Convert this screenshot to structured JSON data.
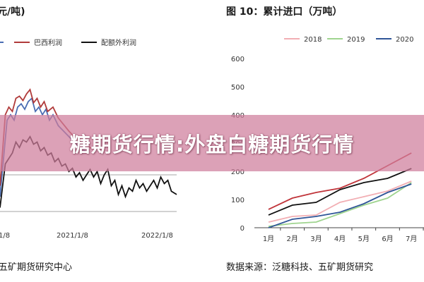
{
  "left": {
    "title": "元/吨)",
    "source": "五矿期货研究中心",
    "chart_data": {
      "type": "line",
      "x_ticks": [
        "1/8",
        "2021/1/8",
        "2022/1/8"
      ],
      "legend": [
        "巴西利润",
        "配额外利润"
      ],
      "series": [
        {
          "name": "",
          "color": "#4a6db3",
          "values": [
            [
              0.0,
              -0.2
            ],
            [
              0.04,
              0.5
            ],
            [
              0.06,
              0.55
            ],
            [
              0.08,
              0.5
            ],
            [
              0.1,
              0.62
            ],
            [
              0.12,
              0.65
            ],
            [
              0.14,
              0.6
            ],
            [
              0.16,
              0.67
            ],
            [
              0.18,
              0.7
            ],
            [
              0.2,
              0.58
            ],
            [
              0.22,
              0.62
            ],
            [
              0.24,
              0.55
            ],
            [
              0.26,
              0.6
            ],
            [
              0.28,
              0.5
            ],
            [
              0.3,
              0.55
            ],
            [
              0.33,
              0.45
            ],
            [
              0.36,
              0.4
            ],
            [
              0.39,
              0.35
            ],
            [
              0.42,
              0.3
            ],
            [
              0.45,
              0.25
            ],
            [
              0.5,
              0.2
            ]
          ]
        },
        {
          "name": "巴西利润",
          "color": "#b03a3a",
          "values": [
            [
              0.0,
              -0.1
            ],
            [
              0.03,
              0.55
            ],
            [
              0.05,
              0.62
            ],
            [
              0.07,
              0.58
            ],
            [
              0.09,
              0.7
            ],
            [
              0.11,
              0.72
            ],
            [
              0.13,
              0.68
            ],
            [
              0.15,
              0.74
            ],
            [
              0.17,
              0.78
            ],
            [
              0.19,
              0.66
            ],
            [
              0.21,
              0.7
            ],
            [
              0.23,
              0.62
            ],
            [
              0.25,
              0.67
            ],
            [
              0.27,
              0.58
            ],
            [
              0.3,
              0.62
            ],
            [
              0.33,
              0.52
            ],
            [
              0.36,
              0.46
            ],
            [
              0.39,
              0.4
            ],
            [
              0.42,
              0.35
            ],
            [
              0.46,
              0.3
            ],
            [
              0.52,
              0.24
            ]
          ]
        },
        {
          "name": "配额外利润",
          "color": "#111111",
          "values": [
            [
              0.0,
              -0.3
            ],
            [
              0.03,
              0.1
            ],
            [
              0.05,
              0.15
            ],
            [
              0.07,
              0.2
            ],
            [
              0.09,
              0.3
            ],
            [
              0.11,
              0.25
            ],
            [
              0.13,
              0.32
            ],
            [
              0.15,
              0.3
            ],
            [
              0.17,
              0.35
            ],
            [
              0.19,
              0.28
            ],
            [
              0.21,
              0.3
            ],
            [
              0.23,
              0.22
            ],
            [
              0.25,
              0.25
            ],
            [
              0.27,
              0.18
            ],
            [
              0.29,
              0.2
            ],
            [
              0.31,
              0.12
            ],
            [
              0.33,
              0.15
            ],
            [
              0.35,
              0.08
            ],
            [
              0.37,
              0.1
            ],
            [
              0.39,
              0.03
            ],
            [
              0.41,
              0.06
            ],
            [
              0.43,
              -0.02
            ],
            [
              0.45,
              0.02
            ],
            [
              0.47,
              -0.05
            ],
            [
              0.49,
              0.0
            ],
            [
              0.51,
              0.05
            ],
            [
              0.53,
              -0.02
            ],
            [
              0.55,
              0.03
            ],
            [
              0.57,
              -0.08
            ],
            [
              0.59,
              0.0
            ],
            [
              0.61,
              0.05
            ],
            [
              0.63,
              -0.1
            ],
            [
              0.65,
              -0.05
            ],
            [
              0.67,
              -0.18
            ],
            [
              0.69,
              -0.1
            ],
            [
              0.71,
              -0.2
            ],
            [
              0.73,
              -0.12
            ],
            [
              0.75,
              -0.15
            ],
            [
              0.77,
              -0.05
            ],
            [
              0.79,
              -0.12
            ],
            [
              0.81,
              -0.08
            ],
            [
              0.83,
              -0.15
            ],
            [
              0.85,
              -0.1
            ],
            [
              0.87,
              -0.05
            ],
            [
              0.89,
              -0.12
            ],
            [
              0.91,
              -0.02
            ],
            [
              0.93,
              -0.08
            ],
            [
              0.95,
              -0.05
            ],
            [
              0.97,
              -0.15
            ],
            [
              1.0,
              -0.18
            ]
          ]
        }
      ]
    }
  },
  "right": {
    "title": "图 10：累计进口（万吨）",
    "source": "数据来源：泛糖科技、五矿期货研究",
    "chart_data": {
      "type": "line",
      "categories": [
        "1月",
        "2月",
        "3月",
        "4月",
        "5月",
        "6月",
        "7月"
      ],
      "ylim": [
        0,
        600
      ],
      "y_ticks": [
        0,
        100,
        200,
        300,
        400,
        500,
        600
      ],
      "legend_position": "top",
      "series": [
        {
          "name": "2018",
          "color": "#f2aeb3",
          "values": [
            20,
            40,
            45,
            90,
            110,
            130,
            165
          ]
        },
        {
          "name": "2019",
          "color": "#9fd48f",
          "values": [
            5,
            15,
            20,
            50,
            80,
            105,
            160
          ]
        },
        {
          "name": "2020",
          "color": "#2f5597",
          "values": [
            0,
            30,
            40,
            55,
            85,
            125,
            155
          ]
        },
        {
          "name": "",
          "color": "#c0343a",
          "values": [
            65,
            105,
            125,
            140,
            175,
            220,
            265
          ]
        },
        {
          "name": "",
          "color": "#111111",
          "values": [
            45,
            80,
            90,
            135,
            160,
            175,
            210
          ]
        }
      ]
    }
  },
  "banner": {
    "text": "糖期货行情:外盘白糖期货行情",
    "color": "#ce7d9b"
  }
}
